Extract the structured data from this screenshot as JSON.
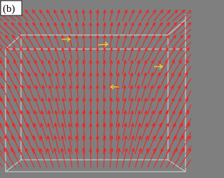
{
  "panel_label": "(b)"
}
